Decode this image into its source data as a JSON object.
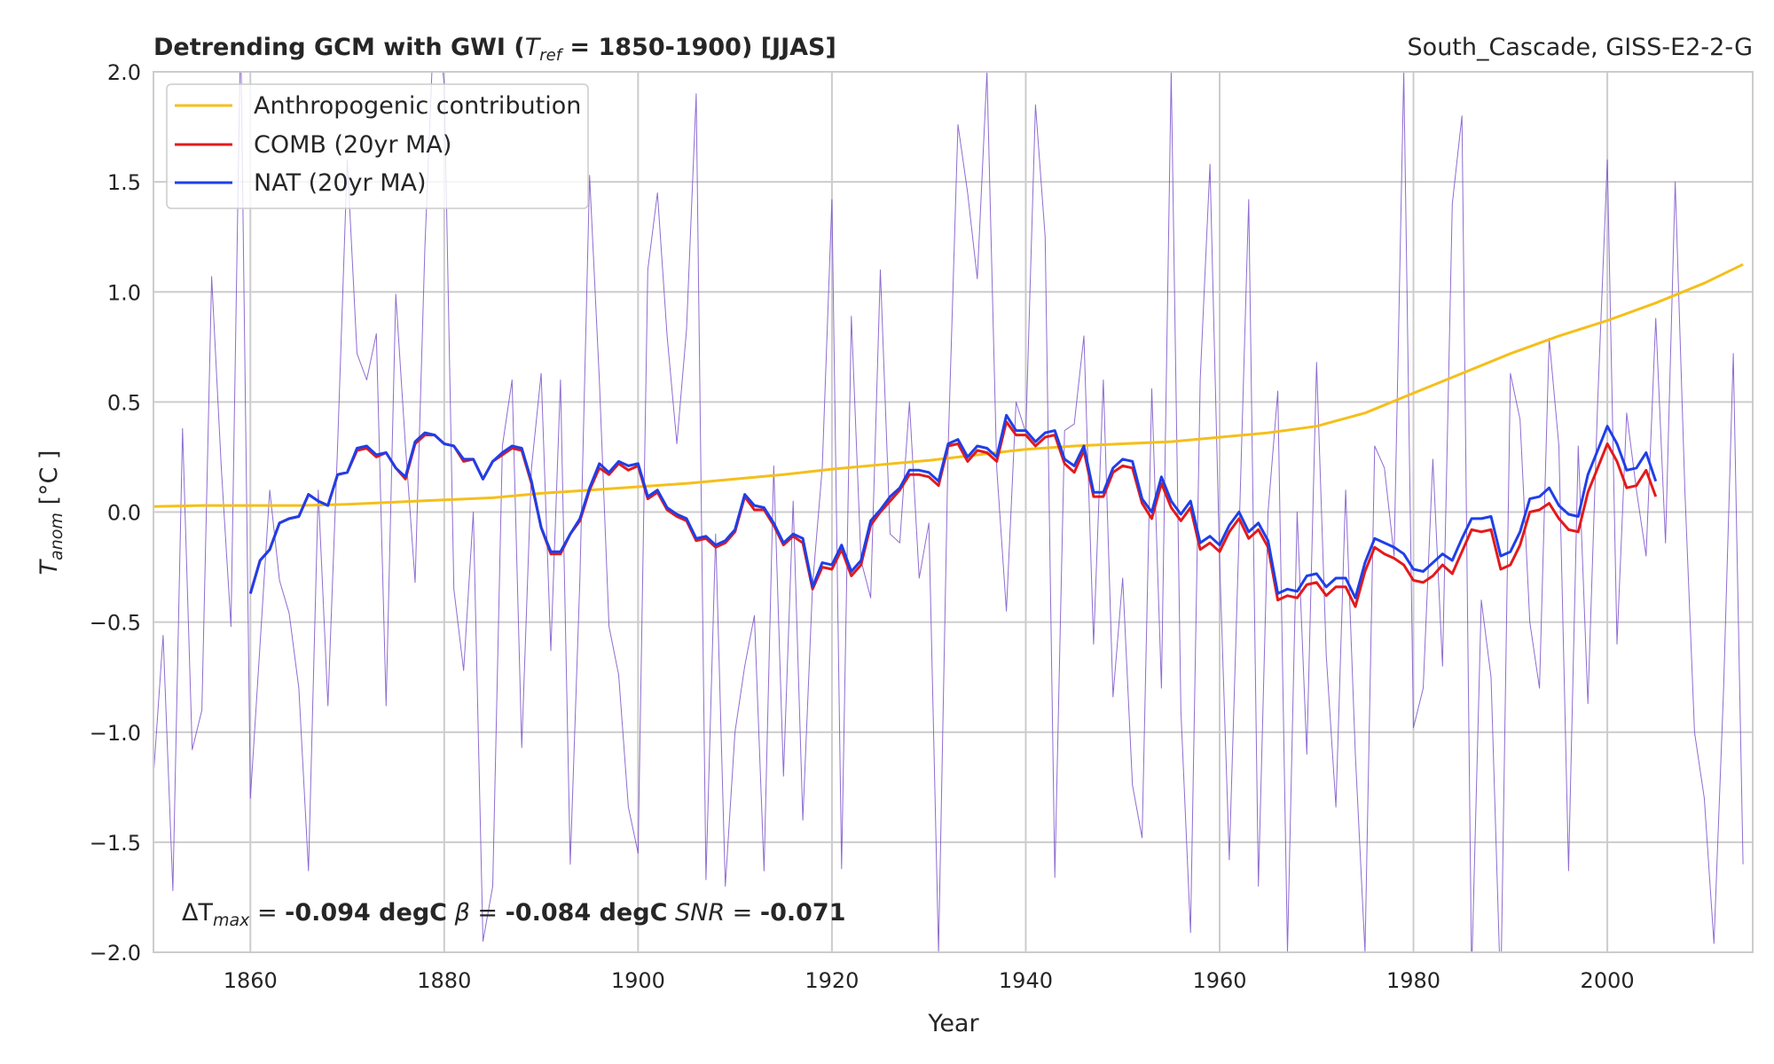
{
  "chart_data": {
    "type": "line",
    "title": "Detrending GCM with GWI (T_ref = 1850-1900) [JJAS]",
    "title_parts": {
      "lead": "Detrending GCM with GWI (",
      "sym": "T",
      "sub": "ref",
      "tail": " = 1850-1900) [JJAS]"
    },
    "subtitle_right": "South_Cascade, GISS-E2-2-G",
    "xlabel": "Year",
    "ylabel_sym": "T",
    "ylabel_sub": "anom",
    "ylabel_unit": " [°C ]",
    "xlim": [
      1850,
      2015
    ],
    "ylim": [
      -2.0,
      2.0
    ],
    "xticks": [
      1860,
      1880,
      1900,
      1920,
      1940,
      1960,
      1980,
      2000
    ],
    "yticks": [
      2.0,
      1.5,
      1.0,
      0.5,
      0.0,
      -0.5,
      -1.0,
      -1.5,
      -2.0
    ],
    "ytick_labels": [
      "2.0",
      "1.5",
      "1.0",
      "0.5",
      "0.0",
      "−0.5",
      "−1.0",
      "−1.5",
      "−2.0"
    ],
    "grid": true,
    "legend_position": "top-left",
    "colors": {
      "anthropogenic": "#f5bf1a",
      "comb": "#e31a1c",
      "nat": "#1f3fe8",
      "annual": "#7a52c9",
      "grid": "#cccccc",
      "frame": "#cccccc"
    },
    "series": [
      {
        "name": "Anthropogenic contribution",
        "key": "anthropogenic",
        "x": [
          1850,
          1855,
          1860,
          1865,
          1870,
          1875,
          1880,
          1885,
          1890,
          1895,
          1900,
          1905,
          1910,
          1915,
          1920,
          1925,
          1930,
          1935,
          1940,
          1945,
          1950,
          1955,
          1960,
          1965,
          1970,
          1975,
          1980,
          1985,
          1990,
          1995,
          2000,
          2005,
          2010,
          2014
        ],
        "values": [
          0.025,
          0.03,
          0.03,
          0.03,
          0.035,
          0.045,
          0.055,
          0.065,
          0.085,
          0.1,
          0.115,
          0.13,
          0.15,
          0.17,
          0.195,
          0.215,
          0.235,
          0.26,
          0.285,
          0.3,
          0.31,
          0.32,
          0.34,
          0.36,
          0.39,
          0.45,
          0.54,
          0.63,
          0.72,
          0.8,
          0.87,
          0.95,
          1.04,
          1.125
        ]
      },
      {
        "name": "COMB (20yr MA)",
        "key": "comb",
        "x": [
          1860,
          1861,
          1862,
          1863,
          1864,
          1865,
          1866,
          1867,
          1868,
          1869,
          1870,
          1871,
          1872,
          1873,
          1874,
          1875,
          1876,
          1877,
          1878,
          1879,
          1880,
          1881,
          1882,
          1883,
          1884,
          1885,
          1886,
          1887,
          1888,
          1889,
          1890,
          1891,
          1892,
          1893,
          1894,
          1895,
          1896,
          1897,
          1898,
          1899,
          1900,
          1901,
          1902,
          1903,
          1904,
          1905,
          1906,
          1907,
          1908,
          1909,
          1910,
          1911,
          1912,
          1913,
          1914,
          1915,
          1916,
          1917,
          1918,
          1919,
          1920,
          1921,
          1922,
          1923,
          1924,
          1925,
          1926,
          1927,
          1928,
          1929,
          1930,
          1931,
          1932,
          1933,
          1934,
          1935,
          1936,
          1937,
          1938,
          1939,
          1940,
          1941,
          1942,
          1943,
          1944,
          1945,
          1946,
          1947,
          1948,
          1949,
          1950,
          1951,
          1952,
          1953,
          1954,
          1955,
          1956,
          1957,
          1958,
          1959,
          1960,
          1961,
          1962,
          1963,
          1964,
          1965,
          1966,
          1967,
          1968,
          1969,
          1970,
          1971,
          1972,
          1973,
          1974,
          1975,
          1976,
          1977,
          1978,
          1979,
          1980,
          1981,
          1982,
          1983,
          1984,
          1985,
          1986,
          1987,
          1988,
          1989,
          1990,
          1991,
          1992,
          1993,
          1994,
          1995,
          1996,
          1997,
          1998,
          1999,
          2000,
          2001,
          2002,
          2003,
          2004,
          2005
        ],
        "values": [
          -0.37,
          -0.22,
          -0.17,
          -0.05,
          -0.03,
          -0.02,
          0.08,
          0.05,
          0.03,
          0.17,
          0.18,
          0.28,
          0.29,
          0.25,
          0.27,
          0.2,
          0.15,
          0.31,
          0.35,
          0.35,
          0.31,
          0.3,
          0.23,
          0.24,
          0.15,
          0.23,
          0.26,
          0.29,
          0.28,
          0.13,
          -0.07,
          -0.19,
          -0.19,
          -0.1,
          -0.04,
          0.1,
          0.2,
          0.17,
          0.22,
          0.19,
          0.21,
          0.06,
          0.09,
          0.01,
          -0.02,
          -0.04,
          -0.13,
          -0.12,
          -0.16,
          -0.14,
          -0.09,
          0.07,
          0.01,
          0.01,
          -0.06,
          -0.15,
          -0.11,
          -0.14,
          -0.35,
          -0.25,
          -0.26,
          -0.17,
          -0.29,
          -0.24,
          -0.06,
          0.0,
          0.05,
          0.1,
          0.17,
          0.17,
          0.16,
          0.12,
          0.3,
          0.31,
          0.23,
          0.28,
          0.27,
          0.23,
          0.41,
          0.35,
          0.35,
          0.3,
          0.34,
          0.35,
          0.22,
          0.18,
          0.28,
          0.07,
          0.07,
          0.18,
          0.21,
          0.2,
          0.04,
          -0.03,
          0.13,
          0.02,
          -0.04,
          0.02,
          -0.17,
          -0.14,
          -0.18,
          -0.09,
          -0.03,
          -0.12,
          -0.08,
          -0.16,
          -0.4,
          -0.38,
          -0.39,
          -0.33,
          -0.32,
          -0.38,
          -0.34,
          -0.34,
          -0.43,
          -0.27,
          -0.16,
          -0.19,
          -0.21,
          -0.24,
          -0.31,
          -0.32,
          -0.29,
          -0.24,
          -0.28,
          -0.18,
          -0.08,
          -0.09,
          -0.08,
          -0.26,
          -0.24,
          -0.15,
          0.0,
          0.01,
          0.04,
          -0.03,
          -0.08,
          -0.09,
          0.09,
          0.2,
          0.31,
          0.23,
          0.11,
          0.12,
          0.19,
          0.07
        ]
      },
      {
        "name": "NAT (20yr MA)",
        "key": "nat",
        "x": [
          1860,
          1861,
          1862,
          1863,
          1864,
          1865,
          1866,
          1867,
          1868,
          1869,
          1870,
          1871,
          1872,
          1873,
          1874,
          1875,
          1876,
          1877,
          1878,
          1879,
          1880,
          1881,
          1882,
          1883,
          1884,
          1885,
          1886,
          1887,
          1888,
          1889,
          1890,
          1891,
          1892,
          1893,
          1894,
          1895,
          1896,
          1897,
          1898,
          1899,
          1900,
          1901,
          1902,
          1903,
          1904,
          1905,
          1906,
          1907,
          1908,
          1909,
          1910,
          1911,
          1912,
          1913,
          1914,
          1915,
          1916,
          1917,
          1918,
          1919,
          1920,
          1921,
          1922,
          1923,
          1924,
          1925,
          1926,
          1927,
          1928,
          1929,
          1930,
          1931,
          1932,
          1933,
          1934,
          1935,
          1936,
          1937,
          1938,
          1939,
          1940,
          1941,
          1942,
          1943,
          1944,
          1945,
          1946,
          1947,
          1948,
          1949,
          1950,
          1951,
          1952,
          1953,
          1954,
          1955,
          1956,
          1957,
          1958,
          1959,
          1960,
          1961,
          1962,
          1963,
          1964,
          1965,
          1966,
          1967,
          1968,
          1969,
          1970,
          1971,
          1972,
          1973,
          1974,
          1975,
          1976,
          1977,
          1978,
          1979,
          1980,
          1981,
          1982,
          1983,
          1984,
          1985,
          1986,
          1987,
          1988,
          1989,
          1990,
          1991,
          1992,
          1993,
          1994,
          1995,
          1996,
          1997,
          1998,
          1999,
          2000,
          2001,
          2002,
          2003,
          2004,
          2005
        ],
        "values": [
          -0.37,
          -0.22,
          -0.17,
          -0.05,
          -0.03,
          -0.02,
          0.08,
          0.05,
          0.03,
          0.17,
          0.18,
          0.29,
          0.3,
          0.26,
          0.27,
          0.2,
          0.16,
          0.32,
          0.36,
          0.35,
          0.31,
          0.3,
          0.24,
          0.24,
          0.15,
          0.23,
          0.27,
          0.3,
          0.29,
          0.14,
          -0.07,
          -0.18,
          -0.18,
          -0.1,
          -0.03,
          0.11,
          0.22,
          0.18,
          0.23,
          0.21,
          0.22,
          0.07,
          0.1,
          0.02,
          -0.01,
          -0.03,
          -0.12,
          -0.11,
          -0.15,
          -0.13,
          -0.08,
          0.08,
          0.03,
          0.02,
          -0.05,
          -0.14,
          -0.1,
          -0.12,
          -0.34,
          -0.23,
          -0.24,
          -0.15,
          -0.27,
          -0.22,
          -0.04,
          0.01,
          0.07,
          0.11,
          0.19,
          0.19,
          0.18,
          0.14,
          0.31,
          0.33,
          0.25,
          0.3,
          0.29,
          0.25,
          0.44,
          0.37,
          0.37,
          0.32,
          0.36,
          0.37,
          0.24,
          0.21,
          0.3,
          0.09,
          0.09,
          0.2,
          0.24,
          0.23,
          0.06,
          0.0,
          0.16,
          0.05,
          -0.01,
          0.05,
          -0.14,
          -0.11,
          -0.15,
          -0.06,
          0.0,
          -0.09,
          -0.05,
          -0.13,
          -0.37,
          -0.35,
          -0.36,
          -0.29,
          -0.28,
          -0.34,
          -0.3,
          -0.3,
          -0.39,
          -0.23,
          -0.12,
          -0.14,
          -0.16,
          -0.19,
          -0.26,
          -0.27,
          -0.23,
          -0.19,
          -0.22,
          -0.12,
          -0.03,
          -0.03,
          -0.02,
          -0.2,
          -0.18,
          -0.09,
          0.06,
          0.07,
          0.11,
          0.03,
          -0.01,
          -0.02,
          0.17,
          0.28,
          0.39,
          0.31,
          0.19,
          0.2,
          0.27,
          0.14
        ]
      },
      {
        "name": "",
        "key": "annual",
        "x": [
          1850,
          1851,
          1852,
          1853,
          1854,
          1855,
          1856,
          1857,
          1858,
          1859,
          1860,
          1861,
          1862,
          1863,
          1864,
          1865,
          1866,
          1867,
          1868,
          1869,
          1870,
          1871,
          1872,
          1873,
          1874,
          1875,
          1876,
          1877,
          1878,
          1879,
          1880,
          1881,
          1882,
          1883,
          1884,
          1885,
          1886,
          1887,
          1888,
          1889,
          1890,
          1891,
          1892,
          1893,
          1894,
          1895,
          1896,
          1897,
          1898,
          1899,
          1900,
          1901,
          1902,
          1903,
          1904,
          1905,
          1906,
          1907,
          1908,
          1909,
          1910,
          1911,
          1912,
          1913,
          1914,
          1915,
          1916,
          1917,
          1918,
          1919,
          1920,
          1921,
          1922,
          1923,
          1924,
          1925,
          1926,
          1927,
          1928,
          1929,
          1930,
          1931,
          1932,
          1933,
          1934,
          1935,
          1936,
          1937,
          1938,
          1939,
          1940,
          1941,
          1942,
          1943,
          1944,
          1945,
          1946,
          1947,
          1948,
          1949,
          1950,
          1951,
          1952,
          1953,
          1954,
          1955,
          1956,
          1957,
          1958,
          1959,
          1960,
          1961,
          1962,
          1963,
          1964,
          1965,
          1966,
          1967,
          1968,
          1969,
          1970,
          1971,
          1972,
          1973,
          1974,
          1975,
          1976,
          1977,
          1978,
          1979,
          1980,
          1981,
          1982,
          1983,
          1984,
          1985,
          1986,
          1987,
          1988,
          1989,
          1990,
          1991,
          1992,
          1993,
          1994,
          1995,
          1996,
          1997,
          1998,
          1999,
          2000,
          2001,
          2002,
          2003,
          2004,
          2005,
          2006,
          2007,
          2008,
          2009,
          2010,
          2011,
          2012,
          2013,
          2014
        ],
        "values": [
          -1.2,
          -0.56,
          -1.72,
          0.38,
          -1.08,
          -0.9,
          1.07,
          0.2,
          -0.52,
          2.2,
          -1.3,
          -0.6,
          0.1,
          -0.31,
          -0.46,
          -0.8,
          -1.63,
          0.1,
          -0.88,
          0.3,
          1.6,
          0.72,
          0.6,
          0.81,
          -0.88,
          0.99,
          0.3,
          -0.32,
          1.2,
          2.3,
          1.95,
          -0.35,
          -0.72,
          0.0,
          -1.95,
          -1.7,
          0.3,
          0.6,
          -1.07,
          0.2,
          0.63,
          -0.63,
          0.6,
          -1.6,
          -0.3,
          1.53,
          0.6,
          -0.52,
          -0.74,
          -1.34,
          -1.55,
          1.1,
          1.45,
          0.8,
          0.31,
          0.83,
          1.9,
          -1.67,
          -0.1,
          -1.7,
          -1.0,
          -0.7,
          -0.47,
          -1.63,
          0.21,
          -1.2,
          0.05,
          -1.4,
          -0.33,
          0.2,
          1.42,
          -1.62,
          0.89,
          -0.22,
          -0.39,
          1.1,
          -0.1,
          -0.14,
          0.5,
          -0.3,
          -0.05,
          -2.0,
          0.3,
          1.76,
          1.45,
          1.06,
          2.0,
          0.2,
          -0.45,
          0.5,
          0.36,
          1.85,
          1.25,
          -1.66,
          0.37,
          0.4,
          0.8,
          -0.6,
          0.6,
          -0.84,
          -0.3,
          -1.24,
          -1.48,
          0.56,
          -0.8,
          2.0,
          -0.9,
          -1.91,
          0.6,
          1.58,
          -0.22,
          -1.58,
          -0.1,
          1.42,
          -1.7,
          0.0,
          0.55,
          -2.0,
          0.0,
          -1.1,
          0.68,
          -0.65,
          -1.34,
          0.1,
          -1.1,
          -2.0,
          0.3,
          0.2,
          -0.2,
          2.0,
          -0.98,
          -0.8,
          0.24,
          -0.7,
          1.4,
          1.8,
          -2.1,
          -0.4,
          -0.75,
          -2.2,
          0.63,
          0.42,
          -0.5,
          -0.8,
          0.79,
          0.3,
          -1.63,
          0.3,
          -0.87,
          0.5,
          1.6,
          -0.6,
          0.45,
          0.1,
          -0.2,
          0.88,
          -0.14,
          1.5,
          0.1,
          -1.0,
          -1.3,
          -1.96,
          -0.8,
          0.72,
          -1.6
        ]
      }
    ],
    "annotation": {
      "delta_sym": "ΔT",
      "delta_sub": "max",
      "delta_val": "-0.094 degC",
      "beta_sym": "β",
      "beta_val": "-0.084 degC",
      "snr_sym": "SNR",
      "snr_val": "-0.071"
    }
  }
}
